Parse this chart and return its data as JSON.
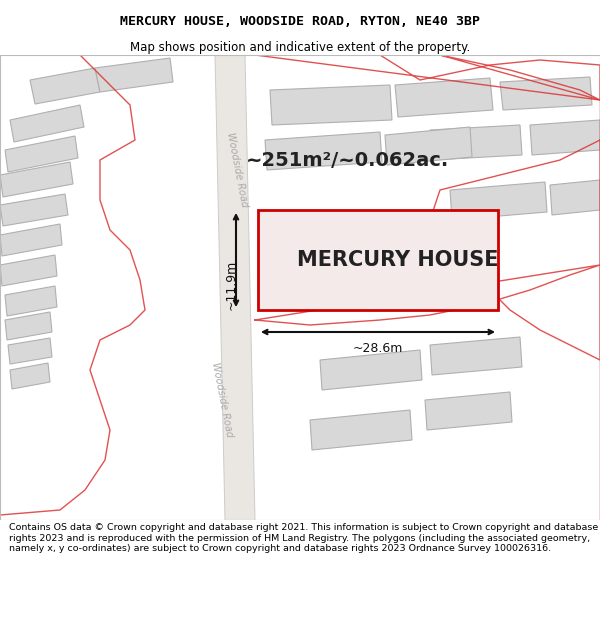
{
  "title": "MERCURY HOUSE, WOODSIDE ROAD, RYTON, NE40 3BP",
  "subtitle": "Map shows position and indicative extent of the property.",
  "footer": "Contains OS data © Crown copyright and database right 2021. This information is subject to Crown copyright and database rights 2023 and is reproduced with the permission of HM Land Registry. The polygons (including the associated geometry, namely x, y co-ordinates) are subject to Crown copyright and database rights 2023 Ordnance Survey 100026316.",
  "map_bg": "#f2eeea",
  "road_fill": "#e8e4e0",
  "building_fill": "#d8d8d8",
  "building_edge": "#b0b0b0",
  "subject_fill": "#f5eaea",
  "subject_edge": "#cc0000",
  "red_line": "#dd3333",
  "dim_color": "#111111",
  "road_label_color": "#aaaaaa",
  "area_text": "~251m²/~0.062ac.",
  "dim_width": "~28.6m",
  "dim_height": "~11.9m",
  "property_label": "MERCURY HOUSE",
  "road_name": "Woodside Road",
  "figsize": [
    6.0,
    6.25
  ],
  "dpi": 100,
  "title_fontsize": 9.5,
  "subtitle_fontsize": 8.5,
  "footer_fontsize": 6.8,
  "area_fontsize": 14,
  "label_fontsize": 15,
  "dim_fontsize": 9
}
